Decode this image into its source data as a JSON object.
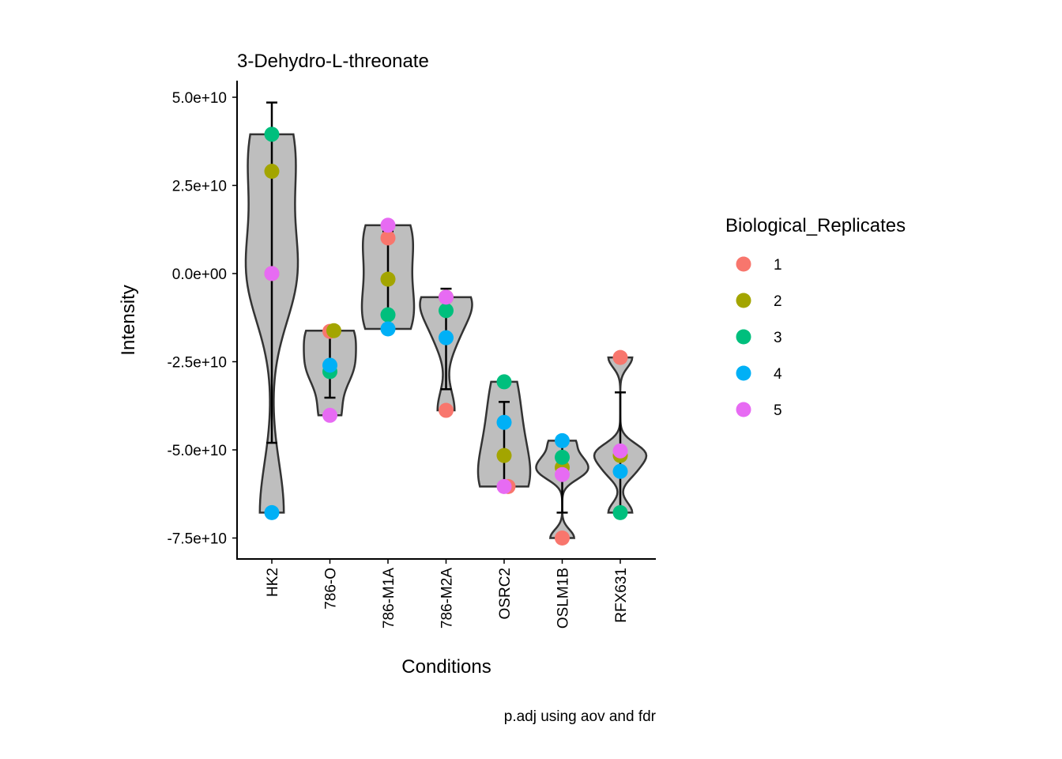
{
  "chart_data": {
    "type": "violin",
    "title": "3-Dehydro-L-threonate",
    "xlabel": "Conditions",
    "ylabel": "Intensity",
    "caption": "p.adj using  aov and fdr",
    "ylim": [
      -81000000000.0,
      52000000000.0
    ],
    "yticks": [
      50000000000.0,
      25000000000.0,
      0,
      -25000000000.0,
      -50000000000.0,
      -75000000000.0
    ],
    "ytick_labels": [
      "5.0e+10",
      "2.5e+10",
      "0.0e+00",
      "-2.5e+10",
      "-5.0e+10",
      "-7.5e+10"
    ],
    "categories": [
      "HK2",
      "786-O",
      "786-M1A",
      "786-M2A",
      "OSRC2",
      "OSLM1B",
      "RFX631"
    ],
    "legend": {
      "title": "Biological_Replicates",
      "position": "right",
      "entries": [
        "1",
        "2",
        "3",
        "4",
        "5"
      ],
      "colors": [
        "#F8766D",
        "#A3A500",
        "#00BF7D",
        "#00B0F6",
        "#E76BF3"
      ]
    },
    "series": [
      {
        "name": "1",
        "values": [
          0.0,
          -16400000000.0,
          10100000000.0,
          -38800000000.0,
          -60400000000.0,
          -75000000000.0,
          -23800000000.0
        ]
      },
      {
        "name": "2",
        "values": [
          29000000000.0,
          -16200000000.0,
          -1600000000.0,
          -6700000000.0,
          -51600000000.0,
          -55000000000.0,
          -51600000000.0
        ]
      },
      {
        "name": "3",
        "values": [
          39500000000.0,
          -27800000000.0,
          -11700000000.0,
          -10500000000.0,
          -30700000000.0,
          -52100000000.0,
          -67800000000.0
        ]
      },
      {
        "name": "4",
        "values": [
          -67800000000.0,
          -26000000000.0,
          -15700000000.0,
          -18200000000.0,
          -42200000000.0,
          -47400000000.0,
          -56100000000.0
        ]
      },
      {
        "name": "5",
        "values": [
          0.0,
          -40200000000.0,
          13700000000.0,
          -6700000000.0,
          -60400000000.0,
          -57000000000.0,
          -50300000000.0
        ]
      }
    ],
    "errorbars": [
      [
        -48000000000.0,
        48500000000.0
      ],
      [
        -35200000000.0,
        -16200000000.0
      ],
      [
        -14500000000.0,
        12000000000.0
      ],
      [
        -32800000000.0,
        -4300000000.0
      ],
      [
        -60000000000.0,
        -36400000000.0
      ],
      [
        -67800000000.0,
        -48000000000.0
      ],
      [
        -67000000000.0,
        -33700000000.0
      ]
    ]
  }
}
